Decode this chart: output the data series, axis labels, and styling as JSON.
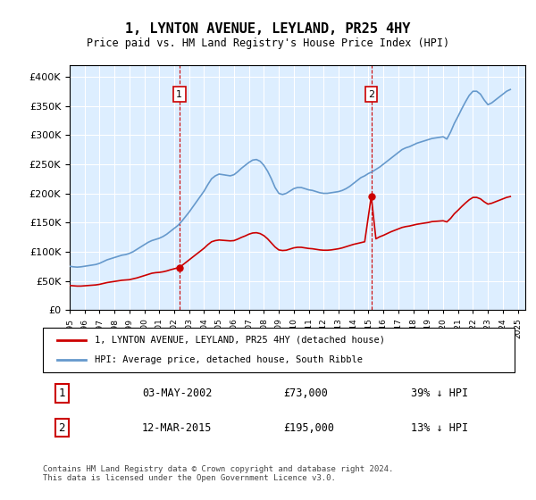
{
  "title": "1, LYNTON AVENUE, LEYLAND, PR25 4HY",
  "subtitle": "Price paid vs. HM Land Registry's House Price Index (HPI)",
  "ylabel_ticks": [
    "£0",
    "£50K",
    "£100K",
    "£150K",
    "£200K",
    "£250K",
    "£300K",
    "£350K",
    "£400K"
  ],
  "ytick_values": [
    0,
    50000,
    100000,
    150000,
    200000,
    250000,
    300000,
    350000,
    400000
  ],
  "ylim": [
    0,
    420000
  ],
  "xlim_start": 1995.0,
  "xlim_end": 2025.5,
  "hpi_color": "#6699cc",
  "price_color": "#cc0000",
  "vline_color": "#cc0000",
  "background_color": "#ddeeff",
  "sale1_year": 2002.34,
  "sale1_price": 73000,
  "sale2_year": 2015.19,
  "sale2_price": 195000,
  "legend_label_price": "1, LYNTON AVENUE, LEYLAND, PR25 4HY (detached house)",
  "legend_label_hpi": "HPI: Average price, detached house, South Ribble",
  "annotation1_label": "1",
  "annotation2_label": "2",
  "table_row1": [
    "1",
    "03-MAY-2002",
    "£73,000",
    "39% ↓ HPI"
  ],
  "table_row2": [
    "2",
    "12-MAR-2015",
    "£195,000",
    "13% ↓ HPI"
  ],
  "footer": "Contains HM Land Registry data © Crown copyright and database right 2024.\nThis data is licensed under the Open Government Licence v3.0.",
  "hpi_data": {
    "years": [
      1995.0,
      1995.25,
      1995.5,
      1995.75,
      1996.0,
      1996.25,
      1996.5,
      1996.75,
      1997.0,
      1997.25,
      1997.5,
      1997.75,
      1998.0,
      1998.25,
      1998.5,
      1998.75,
      1999.0,
      1999.25,
      1999.5,
      1999.75,
      2000.0,
      2000.25,
      2000.5,
      2000.75,
      2001.0,
      2001.25,
      2001.5,
      2001.75,
      2002.0,
      2002.25,
      2002.5,
      2002.75,
      2003.0,
      2003.25,
      2003.5,
      2003.75,
      2004.0,
      2004.25,
      2004.5,
      2004.75,
      2005.0,
      2005.25,
      2005.5,
      2005.75,
      2006.0,
      2006.25,
      2006.5,
      2006.75,
      2007.0,
      2007.25,
      2007.5,
      2007.75,
      2008.0,
      2008.25,
      2008.5,
      2008.75,
      2009.0,
      2009.25,
      2009.5,
      2009.75,
      2010.0,
      2010.25,
      2010.5,
      2010.75,
      2011.0,
      2011.25,
      2011.5,
      2011.75,
      2012.0,
      2012.25,
      2012.5,
      2012.75,
      2013.0,
      2013.25,
      2013.5,
      2013.75,
      2014.0,
      2014.25,
      2014.5,
      2014.75,
      2015.0,
      2015.25,
      2015.5,
      2015.75,
      2016.0,
      2016.25,
      2016.5,
      2016.75,
      2017.0,
      2017.25,
      2017.5,
      2017.75,
      2018.0,
      2018.25,
      2018.5,
      2018.75,
      2019.0,
      2019.25,
      2019.5,
      2019.75,
      2020.0,
      2020.25,
      2020.5,
      2020.75,
      2021.0,
      2021.25,
      2021.5,
      2021.75,
      2022.0,
      2022.25,
      2022.5,
      2022.75,
      2023.0,
      2023.25,
      2023.5,
      2023.75,
      2024.0,
      2024.25,
      2024.5
    ],
    "values": [
      75000,
      74000,
      73500,
      74000,
      75000,
      76000,
      77000,
      78000,
      80000,
      83000,
      86000,
      88000,
      90000,
      92000,
      94000,
      95000,
      97000,
      100000,
      104000,
      108000,
      112000,
      116000,
      119000,
      121000,
      123000,
      126000,
      130000,
      135000,
      140000,
      145000,
      152000,
      160000,
      168000,
      177000,
      186000,
      195000,
      204000,
      215000,
      225000,
      230000,
      233000,
      232000,
      231000,
      230000,
      232000,
      237000,
      243000,
      248000,
      253000,
      257000,
      258000,
      255000,
      248000,
      238000,
      225000,
      210000,
      200000,
      198000,
      200000,
      204000,
      208000,
      210000,
      210000,
      208000,
      206000,
      205000,
      203000,
      201000,
      200000,
      200000,
      201000,
      202000,
      203000,
      205000,
      208000,
      212000,
      217000,
      222000,
      227000,
      230000,
      234000,
      237000,
      241000,
      245000,
      250000,
      255000,
      260000,
      265000,
      270000,
      275000,
      278000,
      280000,
      283000,
      286000,
      288000,
      290000,
      292000,
      294000,
      295000,
      296000,
      297000,
      293000,
      305000,
      320000,
      332000,
      345000,
      357000,
      368000,
      375000,
      375000,
      370000,
      360000,
      352000,
      355000,
      360000,
      365000,
      370000,
      375000,
      378000
    ]
  },
  "price_data": {
    "years": [
      1995.0,
      1995.25,
      1995.5,
      1995.75,
      1996.0,
      1996.25,
      1996.5,
      1996.75,
      1997.0,
      1997.25,
      1997.5,
      1997.75,
      1998.0,
      1998.25,
      1998.5,
      1998.75,
      1999.0,
      1999.25,
      1999.5,
      1999.75,
      2000.0,
      2000.25,
      2000.5,
      2000.75,
      2001.0,
      2001.25,
      2001.5,
      2001.75,
      2002.34,
      2002.5,
      2002.75,
      2003.0,
      2003.25,
      2003.5,
      2003.75,
      2004.0,
      2004.25,
      2004.5,
      2004.75,
      2005.0,
      2005.25,
      2005.5,
      2005.75,
      2006.0,
      2006.25,
      2006.5,
      2006.75,
      2007.0,
      2007.25,
      2007.5,
      2007.75,
      2008.0,
      2008.25,
      2008.5,
      2008.75,
      2009.0,
      2009.25,
      2009.5,
      2009.75,
      2010.0,
      2010.25,
      2010.5,
      2010.75,
      2011.0,
      2011.25,
      2011.5,
      2011.75,
      2012.0,
      2012.25,
      2012.5,
      2012.75,
      2013.0,
      2013.25,
      2013.5,
      2013.75,
      2014.0,
      2014.25,
      2014.5,
      2014.75,
      2015.19,
      2015.5,
      2015.75,
      2016.0,
      2016.25,
      2016.5,
      2016.75,
      2017.0,
      2017.25,
      2017.5,
      2017.75,
      2018.0,
      2018.25,
      2018.5,
      2018.75,
      2019.0,
      2019.25,
      2019.5,
      2019.75,
      2020.0,
      2020.25,
      2020.5,
      2020.75,
      2021.0,
      2021.25,
      2021.5,
      2021.75,
      2022.0,
      2022.25,
      2022.5,
      2022.75,
      2023.0,
      2023.25,
      2023.5,
      2023.75,
      2024.0,
      2024.25,
      2024.5
    ],
    "values": [
      42000,
      41500,
      41000,
      41000,
      41500,
      42000,
      42500,
      43000,
      44000,
      45500,
      47000,
      48000,
      49000,
      50000,
      51000,
      51500,
      52000,
      53500,
      55000,
      57000,
      59000,
      61000,
      63000,
      64000,
      64500,
      65500,
      67000,
      69000,
      73000,
      76000,
      81000,
      86000,
      91000,
      96000,
      101000,
      106000,
      112000,
      117000,
      119000,
      120000,
      119500,
      119000,
      118500,
      119000,
      121500,
      124500,
      127000,
      130000,
      132000,
      132500,
      131000,
      127500,
      122000,
      115000,
      108000,
      103000,
      102000,
      102500,
      104500,
      106500,
      107500,
      107500,
      106500,
      105500,
      105000,
      104000,
      103000,
      102500,
      102500,
      103000,
      104000,
      105000,
      106500,
      108500,
      110500,
      112500,
      114000,
      115500,
      117000,
      195000,
      122000,
      125500,
      128000,
      131000,
      134000,
      136500,
      139000,
      141500,
      143000,
      144000,
      145500,
      147000,
      148000,
      149000,
      150000,
      151500,
      152000,
      152500,
      153000,
      151000,
      157000,
      165000,
      171000,
      177500,
      183500,
      189000,
      193000,
      193000,
      190500,
      185500,
      181500,
      183000,
      185500,
      188000,
      190500,
      193000,
      194500
    ]
  }
}
